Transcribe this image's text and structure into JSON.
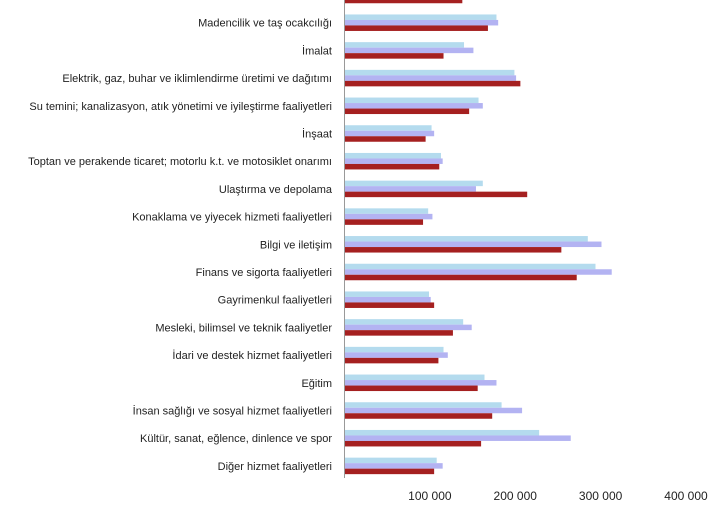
{
  "chart_data": {
    "type": "bar",
    "orientation": "horizontal",
    "categories": [
      "",
      "Madencilik ve taş ocakcılığı",
      "İmalat",
      "Elektrik, gaz, buhar ve iklimlendirme üretimi ve dağıtımı",
      "Su temini; kanalizasyon, atık yönetimi ve iyileştirme faaliyetleri",
      "İnşaat",
      "Toptan ve perakende ticaret; motorlu k.t. ve motosiklet onarımı",
      "Ulaştırma ve depolama",
      "Konaklama ve yiyecek hizmeti faaliyetleri",
      "Bilgi ve iletişim",
      "Finans ve sigorta faaliyetleri",
      "Gayrimenkul faaliyetleri",
      "Mesleki, bilimsel ve teknik faaliyetler",
      "İdari ve destek hizmet faaliyetleri",
      "Eğitim",
      "İnsan sağlığı ve sosyal hizmet faaliyetleri",
      "Kültür, sanat, eğlence, dinlence ve spor",
      "Diğer hizmet faaliyetleri"
    ],
    "series": [
      {
        "color": "#b4dbee",
        "values": [
          null,
          178000,
          140000,
          199000,
          157000,
          102000,
          113000,
          162000,
          98000,
          285000,
          294000,
          99000,
          139000,
          116000,
          164000,
          184000,
          228000,
          108000
        ]
      },
      {
        "color": "#b3b3f2",
        "values": [
          null,
          180000,
          151000,
          201000,
          162000,
          105000,
          115000,
          154000,
          103000,
          301000,
          313000,
          101000,
          149000,
          121000,
          178000,
          208000,
          265000,
          115000
        ]
      },
      {
        "color": "#a52020",
        "values": [
          138000,
          168000,
          116000,
          206000,
          146000,
          95000,
          111000,
          214000,
          92000,
          254000,
          272000,
          105000,
          127000,
          110000,
          156000,
          173000,
          160000,
          105000
        ]
      }
    ],
    "xlim": [
      0,
      400000
    ],
    "x_ticks": [
      100000,
      200000,
      300000,
      400000
    ],
    "x_tick_labels": [
      "100 000",
      "200 000",
      "300 000",
      "400 000"
    ],
    "grid": false,
    "legend": "none"
  }
}
